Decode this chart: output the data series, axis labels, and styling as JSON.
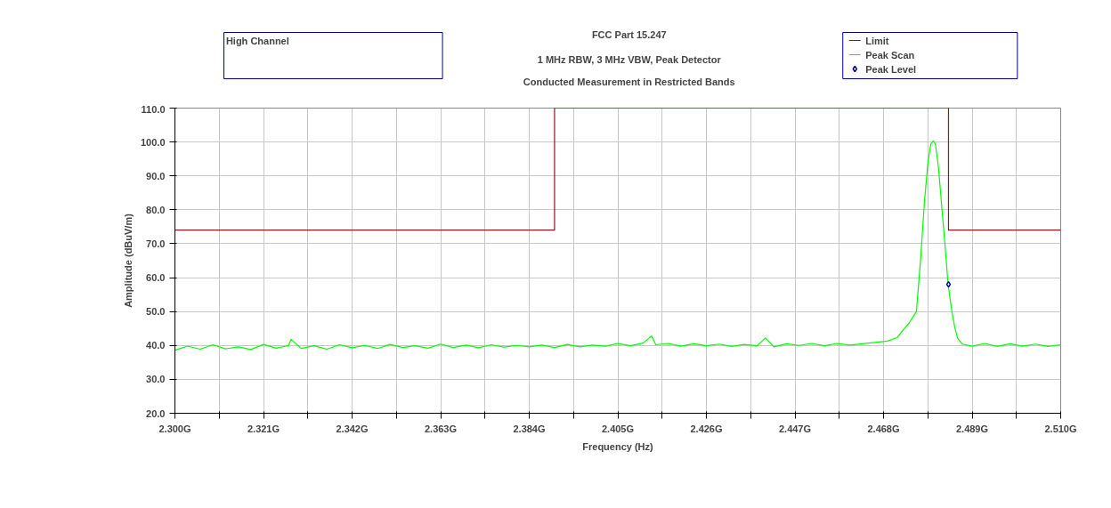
{
  "chart_data": {
    "type": "line",
    "title": "FCC Part 15.247",
    "subtitle": "1 MHz RBW, 3 MHz VBW, Peak Detector\nConducted Measurement in Restricted Bands",
    "xlabel": "Frequency (Hz)",
    "ylabel": "Amplitude (dBuV/m)",
    "annotations": [
      "High Channel"
    ],
    "xlim": [
      2.3,
      2.51
    ],
    "ylim": [
      20,
      110
    ],
    "xticks": [
      {
        "value": 2.3,
        "label": "2.300G"
      },
      {
        "value": 2.3105,
        "label": null
      },
      {
        "value": 2.321,
        "label": "2.321G"
      },
      {
        "value": 2.3315,
        "label": null
      },
      {
        "value": 2.342,
        "label": "2.342G"
      },
      {
        "value": 2.3525,
        "label": null
      },
      {
        "value": 2.363,
        "label": "2.363G"
      },
      {
        "value": 2.3735,
        "label": null
      },
      {
        "value": 2.384,
        "label": "2.384G"
      },
      {
        "value": 2.3945,
        "label": null
      },
      {
        "value": 2.405,
        "label": "2.405G"
      },
      {
        "value": 2.4155,
        "label": null
      },
      {
        "value": 2.426,
        "label": "2.426G"
      },
      {
        "value": 2.4365,
        "label": null
      },
      {
        "value": 2.447,
        "label": "2.447G"
      },
      {
        "value": 2.4575,
        "label": null
      },
      {
        "value": 2.468,
        "label": "2.468G"
      },
      {
        "value": 2.4785,
        "label": null
      },
      {
        "value": 2.489,
        "label": "2.489G"
      },
      {
        "value": 2.4995,
        "label": null
      },
      {
        "value": 2.51,
        "label": "2.510G"
      }
    ],
    "yticks": [
      {
        "value": 20,
        "label": "20.0"
      },
      {
        "value": 30,
        "label": "30.0"
      },
      {
        "value": 40,
        "label": "40.0"
      },
      {
        "value": 50,
        "label": "50.0"
      },
      {
        "value": 60,
        "label": "60.0"
      },
      {
        "value": 70,
        "label": "70.0"
      },
      {
        "value": 80,
        "label": "80.0"
      },
      {
        "value": 90,
        "label": "90.0"
      },
      {
        "value": 100,
        "label": "100.0"
      },
      {
        "value": 110,
        "label": "110.0"
      }
    ],
    "grid": true,
    "legend": "top right",
    "line_style": "solid",
    "series": [
      {
        "name": "Limit",
        "color": "#8b1a1a",
        "x": [
          2.3,
          2.39,
          2.39,
          2.4834,
          2.4834,
          2.51
        ],
        "values": [
          74,
          74,
          110,
          110,
          74,
          74
        ]
      },
      {
        "name": "Peak Scan",
        "color": "#00ff00",
        "x": [
          2.3,
          2.303,
          2.306,
          2.309,
          2.312,
          2.315,
          2.318,
          2.321,
          2.324,
          2.327,
          2.3275,
          2.33,
          2.333,
          2.336,
          2.339,
          2.342,
          2.345,
          2.348,
          2.351,
          2.354,
          2.357,
          2.36,
          2.363,
          2.366,
          2.369,
          2.372,
          2.375,
          2.378,
          2.381,
          2.384,
          2.387,
          2.39,
          2.393,
          2.396,
          2.399,
          2.402,
          2.405,
          2.408,
          2.411,
          2.413,
          2.414,
          2.417,
          2.42,
          2.423,
          2.426,
          2.429,
          2.432,
          2.435,
          2.438,
          2.44,
          2.442,
          2.445,
          2.448,
          2.451,
          2.454,
          2.457,
          2.46,
          2.463,
          2.466,
          2.4689,
          2.4712,
          2.4726,
          2.474,
          2.4758,
          2.4768,
          2.4777,
          2.4785,
          2.4792,
          2.4798,
          2.4803,
          2.481,
          2.4817,
          2.4826,
          2.4833,
          2.4842,
          2.4849,
          2.4856,
          2.4867,
          2.489,
          2.492,
          2.495,
          2.498,
          2.501,
          2.504,
          2.507,
          2.51
        ],
        "values": [
          38.6,
          39.8,
          38.9,
          40.2,
          39.0,
          39.6,
          38.8,
          40.3,
          39.2,
          40.0,
          41.8,
          39.1,
          39.9,
          38.9,
          40.2,
          39.3,
          40.0,
          39.1,
          40.3,
          39.4,
          39.9,
          39.2,
          40.4,
          39.4,
          40.1,
          39.3,
          40.2,
          39.5,
          40.0,
          39.6,
          40.1,
          39.4,
          40.3,
          39.6,
          40.1,
          39.8,
          40.6,
          39.9,
          40.7,
          42.8,
          40.2,
          40.6,
          39.8,
          40.5,
          39.9,
          40.4,
          39.7,
          40.3,
          39.9,
          42.2,
          39.6,
          40.5,
          40.0,
          40.6,
          39.9,
          40.6,
          40.1,
          40.5,
          40.9,
          41.3,
          42.3,
          44.5,
          46.5,
          50,
          65.7,
          82.4,
          93.7,
          99.4,
          100.3,
          99.4,
          92.8,
          82.4,
          69.2,
          58,
          50,
          45.2,
          42,
          40.4,
          39.8,
          40.6,
          39.7,
          40.5,
          39.8,
          40.4,
          39.7,
          40.2
        ]
      },
      {
        "name": "Peak Level",
        "type": "scatter",
        "marker": "diamond",
        "color": "#00008b",
        "x": [
          2.4834
        ],
        "values": [
          58
        ]
      }
    ]
  }
}
